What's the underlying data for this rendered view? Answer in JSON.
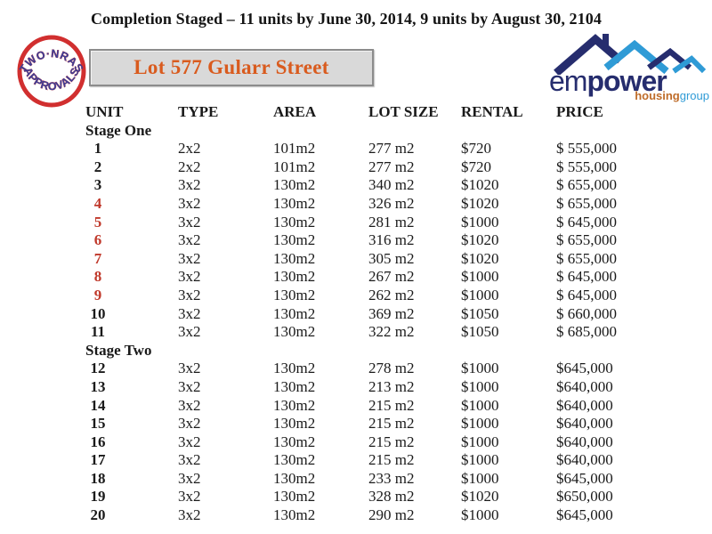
{
  "page": {
    "title": "Completion Staged – 11 units by June 30, 2014, 9 units by August 30, 2104"
  },
  "stamp": {
    "top_text": "TWO·NRAS",
    "bottom_text": "APPROVALS",
    "ring_color": "#d12f2f",
    "text_color": "#3b3e96"
  },
  "address_box": {
    "label": "Lot 577 Gularr Street",
    "text_color": "#d95b1e",
    "background": "#d9d9d9"
  },
  "logo": {
    "em": "em",
    "power": "power",
    "housing": "housing",
    "group": "group",
    "navy": "#262d6e",
    "light_blue": "#2f9bd6",
    "housing_color": "#bf6c2a"
  },
  "table": {
    "columns": [
      "UNIT",
      "TYPE",
      "AREA",
      "LOT SIZE",
      "RENTAL",
      "PRICE"
    ],
    "red_unit_color": "#c0392b",
    "sections": [
      {
        "label": "Stage One",
        "rows": [
          {
            "unit": "1",
            "red": false,
            "type": "2x2",
            "area": "101m2",
            "lot_size": "277 m2",
            "rental": "$720",
            "price": "$ 555,000"
          },
          {
            "unit": "2",
            "red": false,
            "type": "2x2",
            "area": "101m2",
            "lot_size": "277 m2",
            "rental": "$720",
            "price": "$ 555,000"
          },
          {
            "unit": "3",
            "red": false,
            "type": "3x2",
            "area": "130m2",
            "lot_size": "340 m2",
            "rental": "$1020",
            "price": "$ 655,000"
          },
          {
            "unit": "4",
            "red": true,
            "type": "3x2",
            "area": "130m2",
            "lot_size": "326 m2",
            "rental": "$1020",
            "price": "$ 655,000"
          },
          {
            "unit": "5",
            "red": true,
            "type": "3x2",
            "area": "130m2",
            "lot_size": "281 m2",
            "rental": "$1000",
            "price": "$ 645,000"
          },
          {
            "unit": "6",
            "red": true,
            "type": "3x2",
            "area": "130m2",
            "lot_size": "316 m2",
            "rental": "$1020",
            "price": "$ 655,000"
          },
          {
            "unit": "7",
            "red": true,
            "type": "3x2",
            "area": "130m2",
            "lot_size": "305 m2",
            "rental": "$1020",
            "price": "$ 655,000"
          },
          {
            "unit": "8",
            "red": true,
            "type": "3x2",
            "area": "130m2",
            "lot_size": "267 m2",
            "rental": "$1000",
            "price": "$ 645,000"
          },
          {
            "unit": "9",
            "red": true,
            "type": "3x2",
            "area": "130m2",
            "lot_size": "262 m2",
            "rental": "$1000",
            "price": "$ 645,000"
          },
          {
            "unit": "10",
            "red": false,
            "type": "3x2",
            "area": "130m2",
            "lot_size": "369 m2",
            "rental": "$1050",
            "price": "$ 660,000"
          },
          {
            "unit": "11",
            "red": false,
            "type": "3x2",
            "area": "130m2",
            "lot_size": "322 m2",
            "rental": "$1050",
            "price": "$ 685,000"
          }
        ]
      },
      {
        "label": "Stage Two",
        "rows": [
          {
            "unit": "12",
            "red": false,
            "type": "3x2",
            "area": "130m2",
            "lot_size": "278 m2",
            "rental": "$1000",
            "price": "$645,000"
          },
          {
            "unit": "13",
            "red": false,
            "type": "3x2",
            "area": "130m2",
            "lot_size": "213 m2",
            "rental": "$1000",
            "price": "$640,000"
          },
          {
            "unit": "14",
            "red": false,
            "type": "3x2",
            "area": "130m2",
            "lot_size": "215 m2",
            "rental": "$1000",
            "price": "$640,000"
          },
          {
            "unit": "15",
            "red": false,
            "type": "3x2",
            "area": "130m2",
            "lot_size": "215 m2",
            "rental": "$1000",
            "price": "$640,000"
          },
          {
            "unit": "16",
            "red": false,
            "type": "3x2",
            "area": "130m2",
            "lot_size": "215 m2",
            "rental": "$1000",
            "price": "$640,000"
          },
          {
            "unit": "17",
            "red": false,
            "type": "3x2",
            "area": "130m2",
            "lot_size": "215 m2",
            "rental": "$1000",
            "price": "$640,000"
          },
          {
            "unit": "18",
            "red": false,
            "type": "3x2",
            "area": "130m2",
            "lot_size": "233 m2",
            "rental": "$1000",
            "price": "$645,000"
          },
          {
            "unit": "19",
            "red": false,
            "type": "3x2",
            "area": "130m2",
            "lot_size": "328 m2",
            "rental": "$1020",
            "price": "$650,000"
          },
          {
            "unit": "20",
            "red": false,
            "type": "3x2",
            "area": "130m2",
            "lot_size": "290 m2",
            "rental": "$1000",
            "price": "$645,000"
          }
        ]
      }
    ]
  }
}
